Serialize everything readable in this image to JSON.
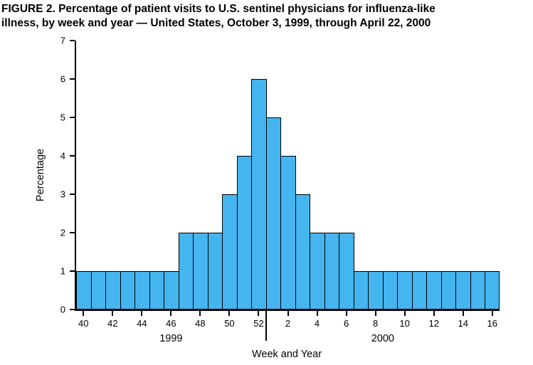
{
  "figure": {
    "title_line1": "FIGURE 2. Percentage of patient visits to U.S. sentinel physicians for influenza-like",
    "title_line2": "illness, by week and year — United States, October 3, 1999, through April 22, 2000"
  },
  "chart_data": {
    "type": "bar",
    "title": "FIGURE 2. Percentage of patient visits to U.S. sentinel physicians for influenza-like illness, by week and year — United States, October 3, 1999, through April 22, 2000",
    "xlabel": "Week and Year",
    "ylabel": "Percentage",
    "ylim": [
      0,
      7
    ],
    "yticks": [
      0,
      1,
      2,
      3,
      4,
      5,
      6,
      7
    ],
    "grid": false,
    "legend": "none",
    "bar_color": "#45b5f0",
    "bar_border_color": "#000000",
    "weeks": [
      40,
      41,
      42,
      43,
      44,
      45,
      46,
      47,
      48,
      49,
      50,
      51,
      52,
      1,
      2,
      3,
      4,
      5,
      6,
      7,
      8,
      9,
      10,
      11,
      12,
      13,
      14,
      15,
      16
    ],
    "values": [
      1,
      1,
      1,
      1,
      1,
      1,
      1,
      2,
      2,
      2,
      3,
      4,
      6,
      5,
      4,
      3,
      2,
      2,
      2,
      1,
      1,
      1,
      1,
      1,
      1,
      1,
      1,
      1,
      1
    ],
    "xtick_labels": [
      "40",
      "42",
      "44",
      "46",
      "48",
      "50",
      "52",
      "2",
      "4",
      "6",
      "8",
      "10",
      "12",
      "14",
      "16"
    ],
    "xtick_indices": [
      0,
      2,
      4,
      6,
      8,
      10,
      12,
      14,
      16,
      18,
      20,
      22,
      24,
      26,
      28
    ],
    "year_groups": [
      {
        "label": "1999",
        "start_index": 0,
        "end_index": 12
      },
      {
        "label": "2000",
        "start_index": 13,
        "end_index": 28
      }
    ],
    "year_divider_index": 13
  }
}
